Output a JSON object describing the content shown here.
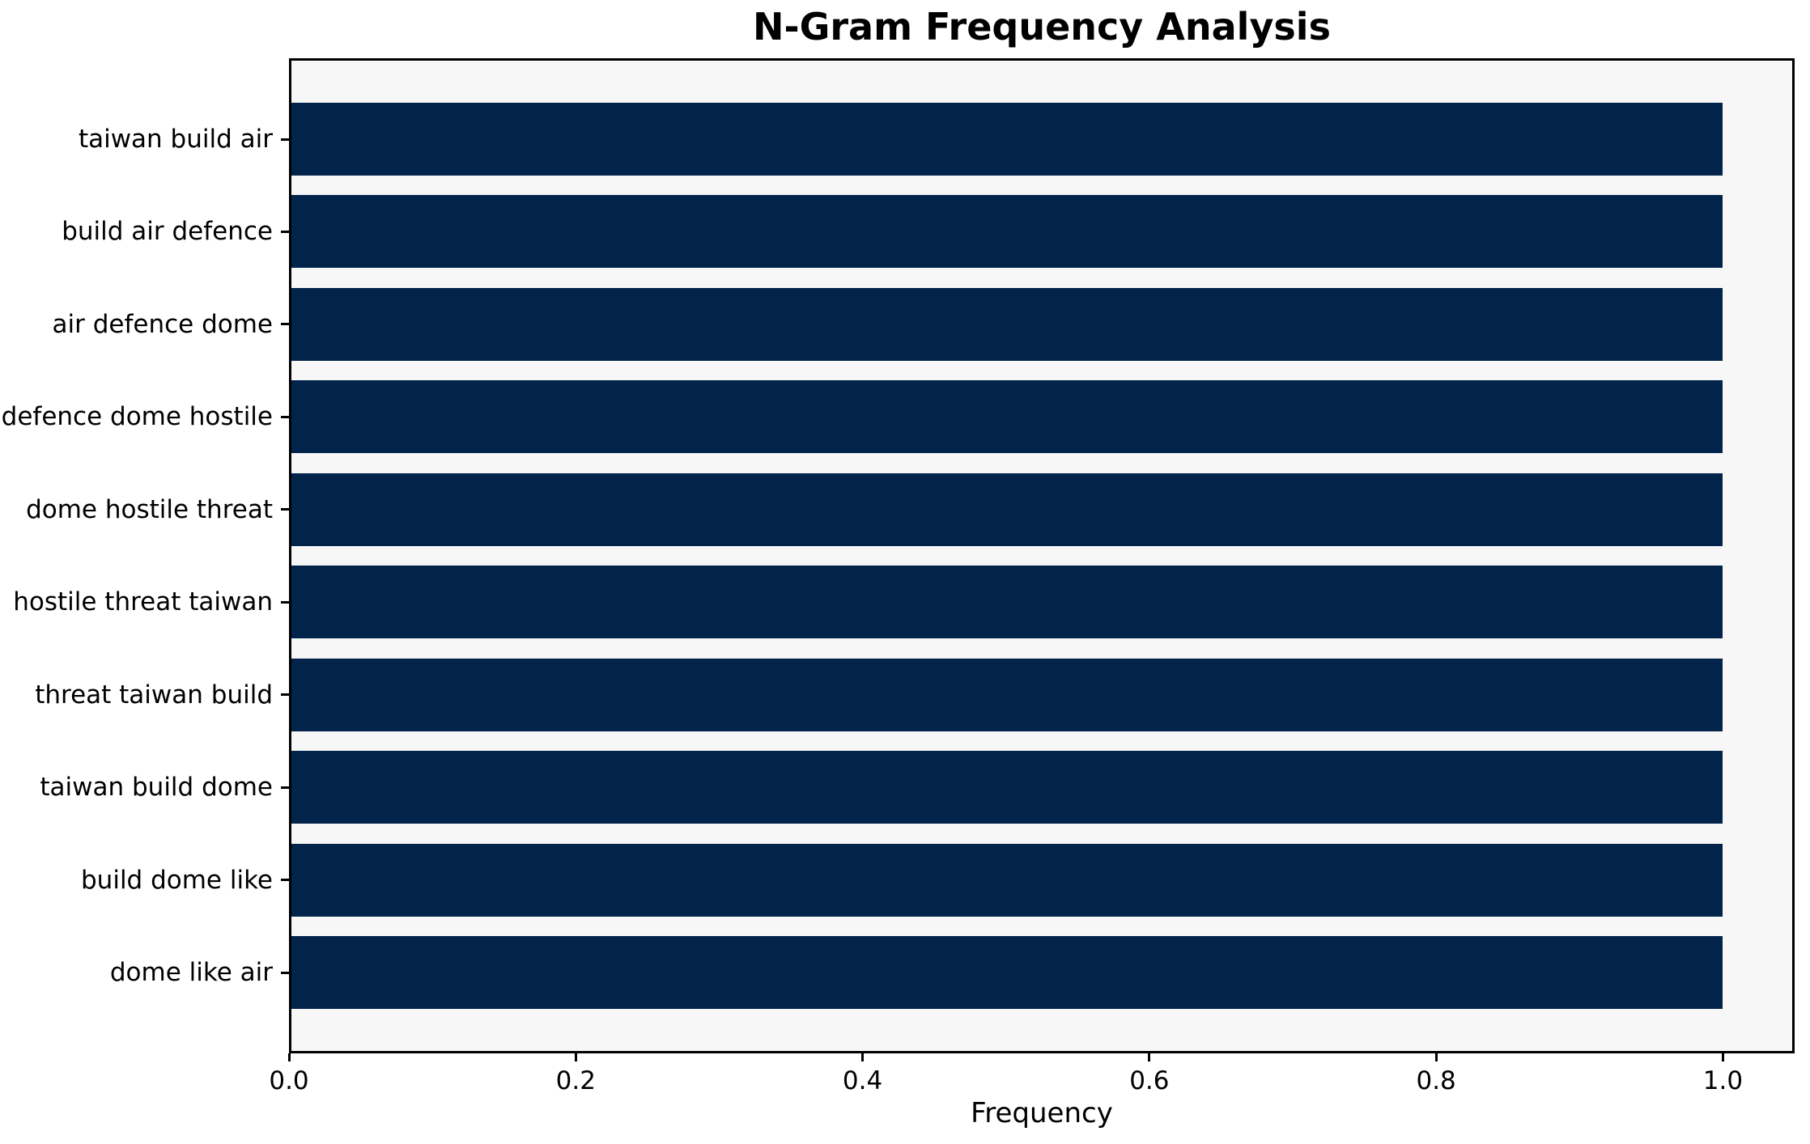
{
  "chart_data": {
    "type": "bar",
    "orientation": "horizontal",
    "title": "N-Gram Frequency Analysis",
    "xlabel": "Frequency",
    "ylabel": "",
    "categories": [
      "taiwan build air",
      "build air defence",
      "air defence dome",
      "defence dome hostile",
      "dome hostile threat",
      "hostile threat taiwan",
      "threat taiwan build",
      "taiwan build dome",
      "build dome like",
      "dome like air"
    ],
    "values": [
      1.0,
      1.0,
      1.0,
      1.0,
      1.0,
      1.0,
      1.0,
      1.0,
      1.0,
      1.0
    ],
    "xlim": [
      0,
      1.05
    ],
    "x_ticks": [
      0.0,
      0.2,
      0.4,
      0.6,
      0.8,
      1.0
    ],
    "x_tick_labels": [
      "0.0",
      "0.2",
      "0.4",
      "0.6",
      "0.8",
      "1.0"
    ],
    "grid": "off",
    "legend": "none",
    "bar_color": "#02234a",
    "plot_background": "#f7f7f7",
    "figure_background": "#ffffff",
    "spine_color": "#000000"
  }
}
